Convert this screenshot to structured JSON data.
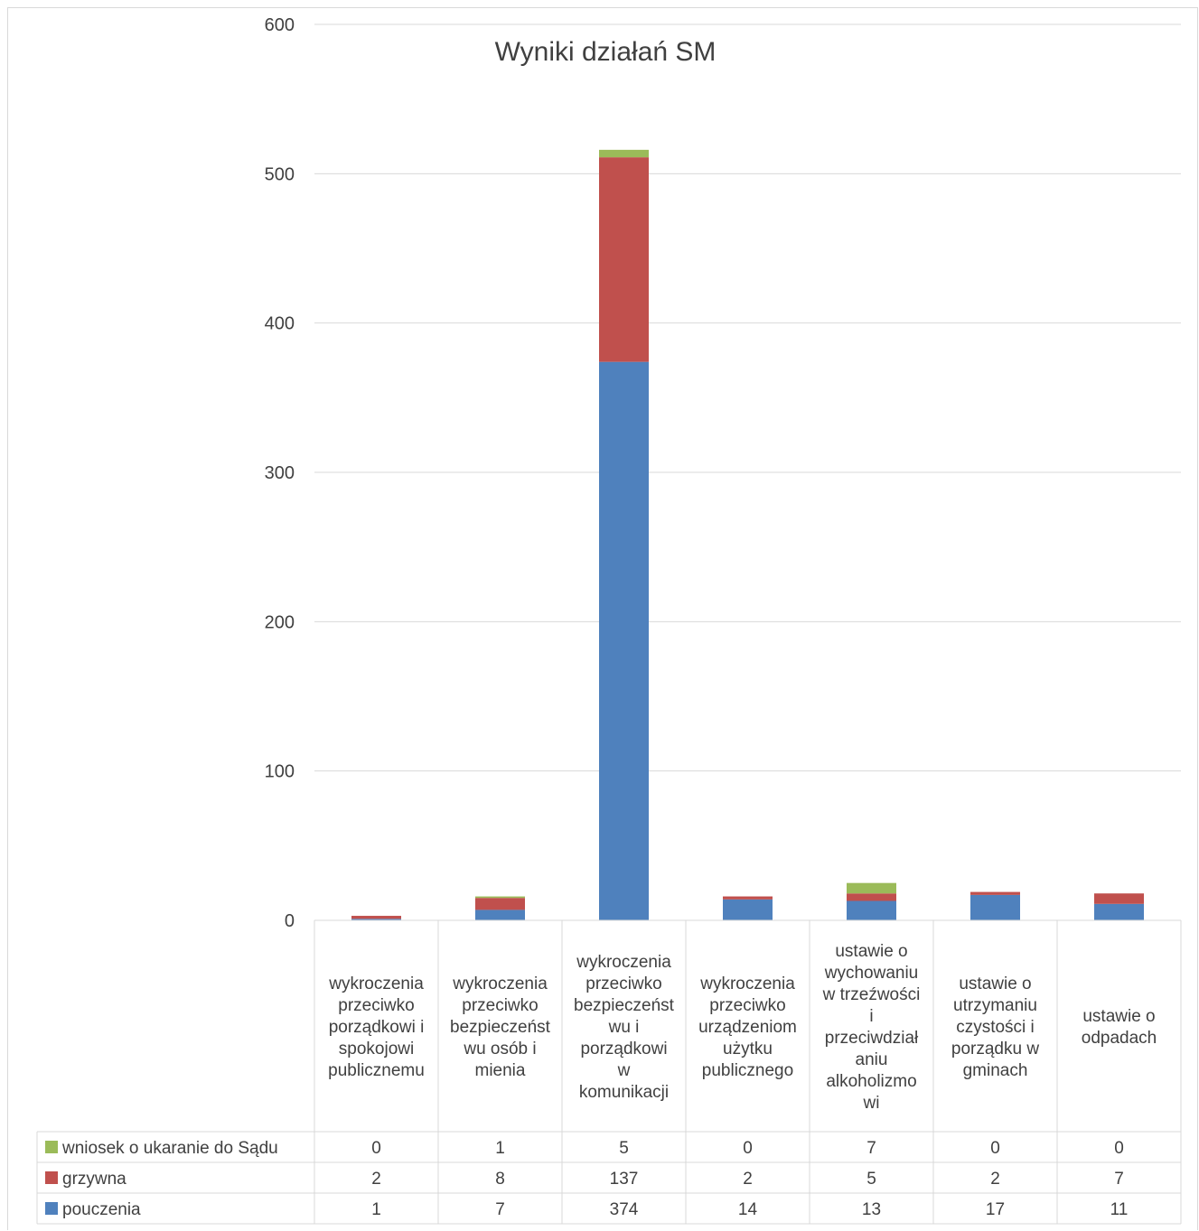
{
  "chart_data": {
    "type": "bar",
    "stacked": true,
    "title": "Wyniki działań SM",
    "ylim": [
      0,
      600
    ],
    "yticks": [
      0,
      100,
      200,
      300,
      400,
      500,
      600
    ],
    "grid": true,
    "legend": "data-table",
    "categories": [
      [
        "wykroczenia",
        "przeciwko",
        "porządkowi i",
        "spokojowi",
        "publicznemu"
      ],
      [
        "wykroczenia",
        "przeciwko",
        "bezpieczeńst",
        "wu osób i",
        "mienia"
      ],
      [
        "wykroczenia",
        "przeciwko",
        "bezpieczeńst",
        "wu i",
        "porządkowi",
        "w",
        "komunikacji"
      ],
      [
        "wykroczenia",
        "przeciwko",
        "urządzeniom",
        "użytku",
        "publicznego"
      ],
      [
        "ustawie o",
        "wychowaniu",
        "w trzeźwości",
        "i",
        "przeciwdział",
        "aniu",
        "alkoholizmo",
        "wi"
      ],
      [
        "ustawie o",
        "utrzymaniu",
        "czystości i",
        "porządku w",
        "gminach"
      ],
      [
        "ustawie o",
        "odpadach"
      ]
    ],
    "series": [
      {
        "name": "pouczenia",
        "color": "#4f81bd",
        "values": [
          1,
          7,
          374,
          14,
          13,
          17,
          11
        ]
      },
      {
        "name": "grzywna",
        "color": "#c0504d",
        "values": [
          2,
          8,
          137,
          2,
          5,
          2,
          7
        ]
      },
      {
        "name": "wniosek o ukaranie do Sądu",
        "color": "#9bbb59",
        "values": [
          0,
          1,
          5,
          0,
          7,
          0,
          0
        ]
      }
    ]
  }
}
